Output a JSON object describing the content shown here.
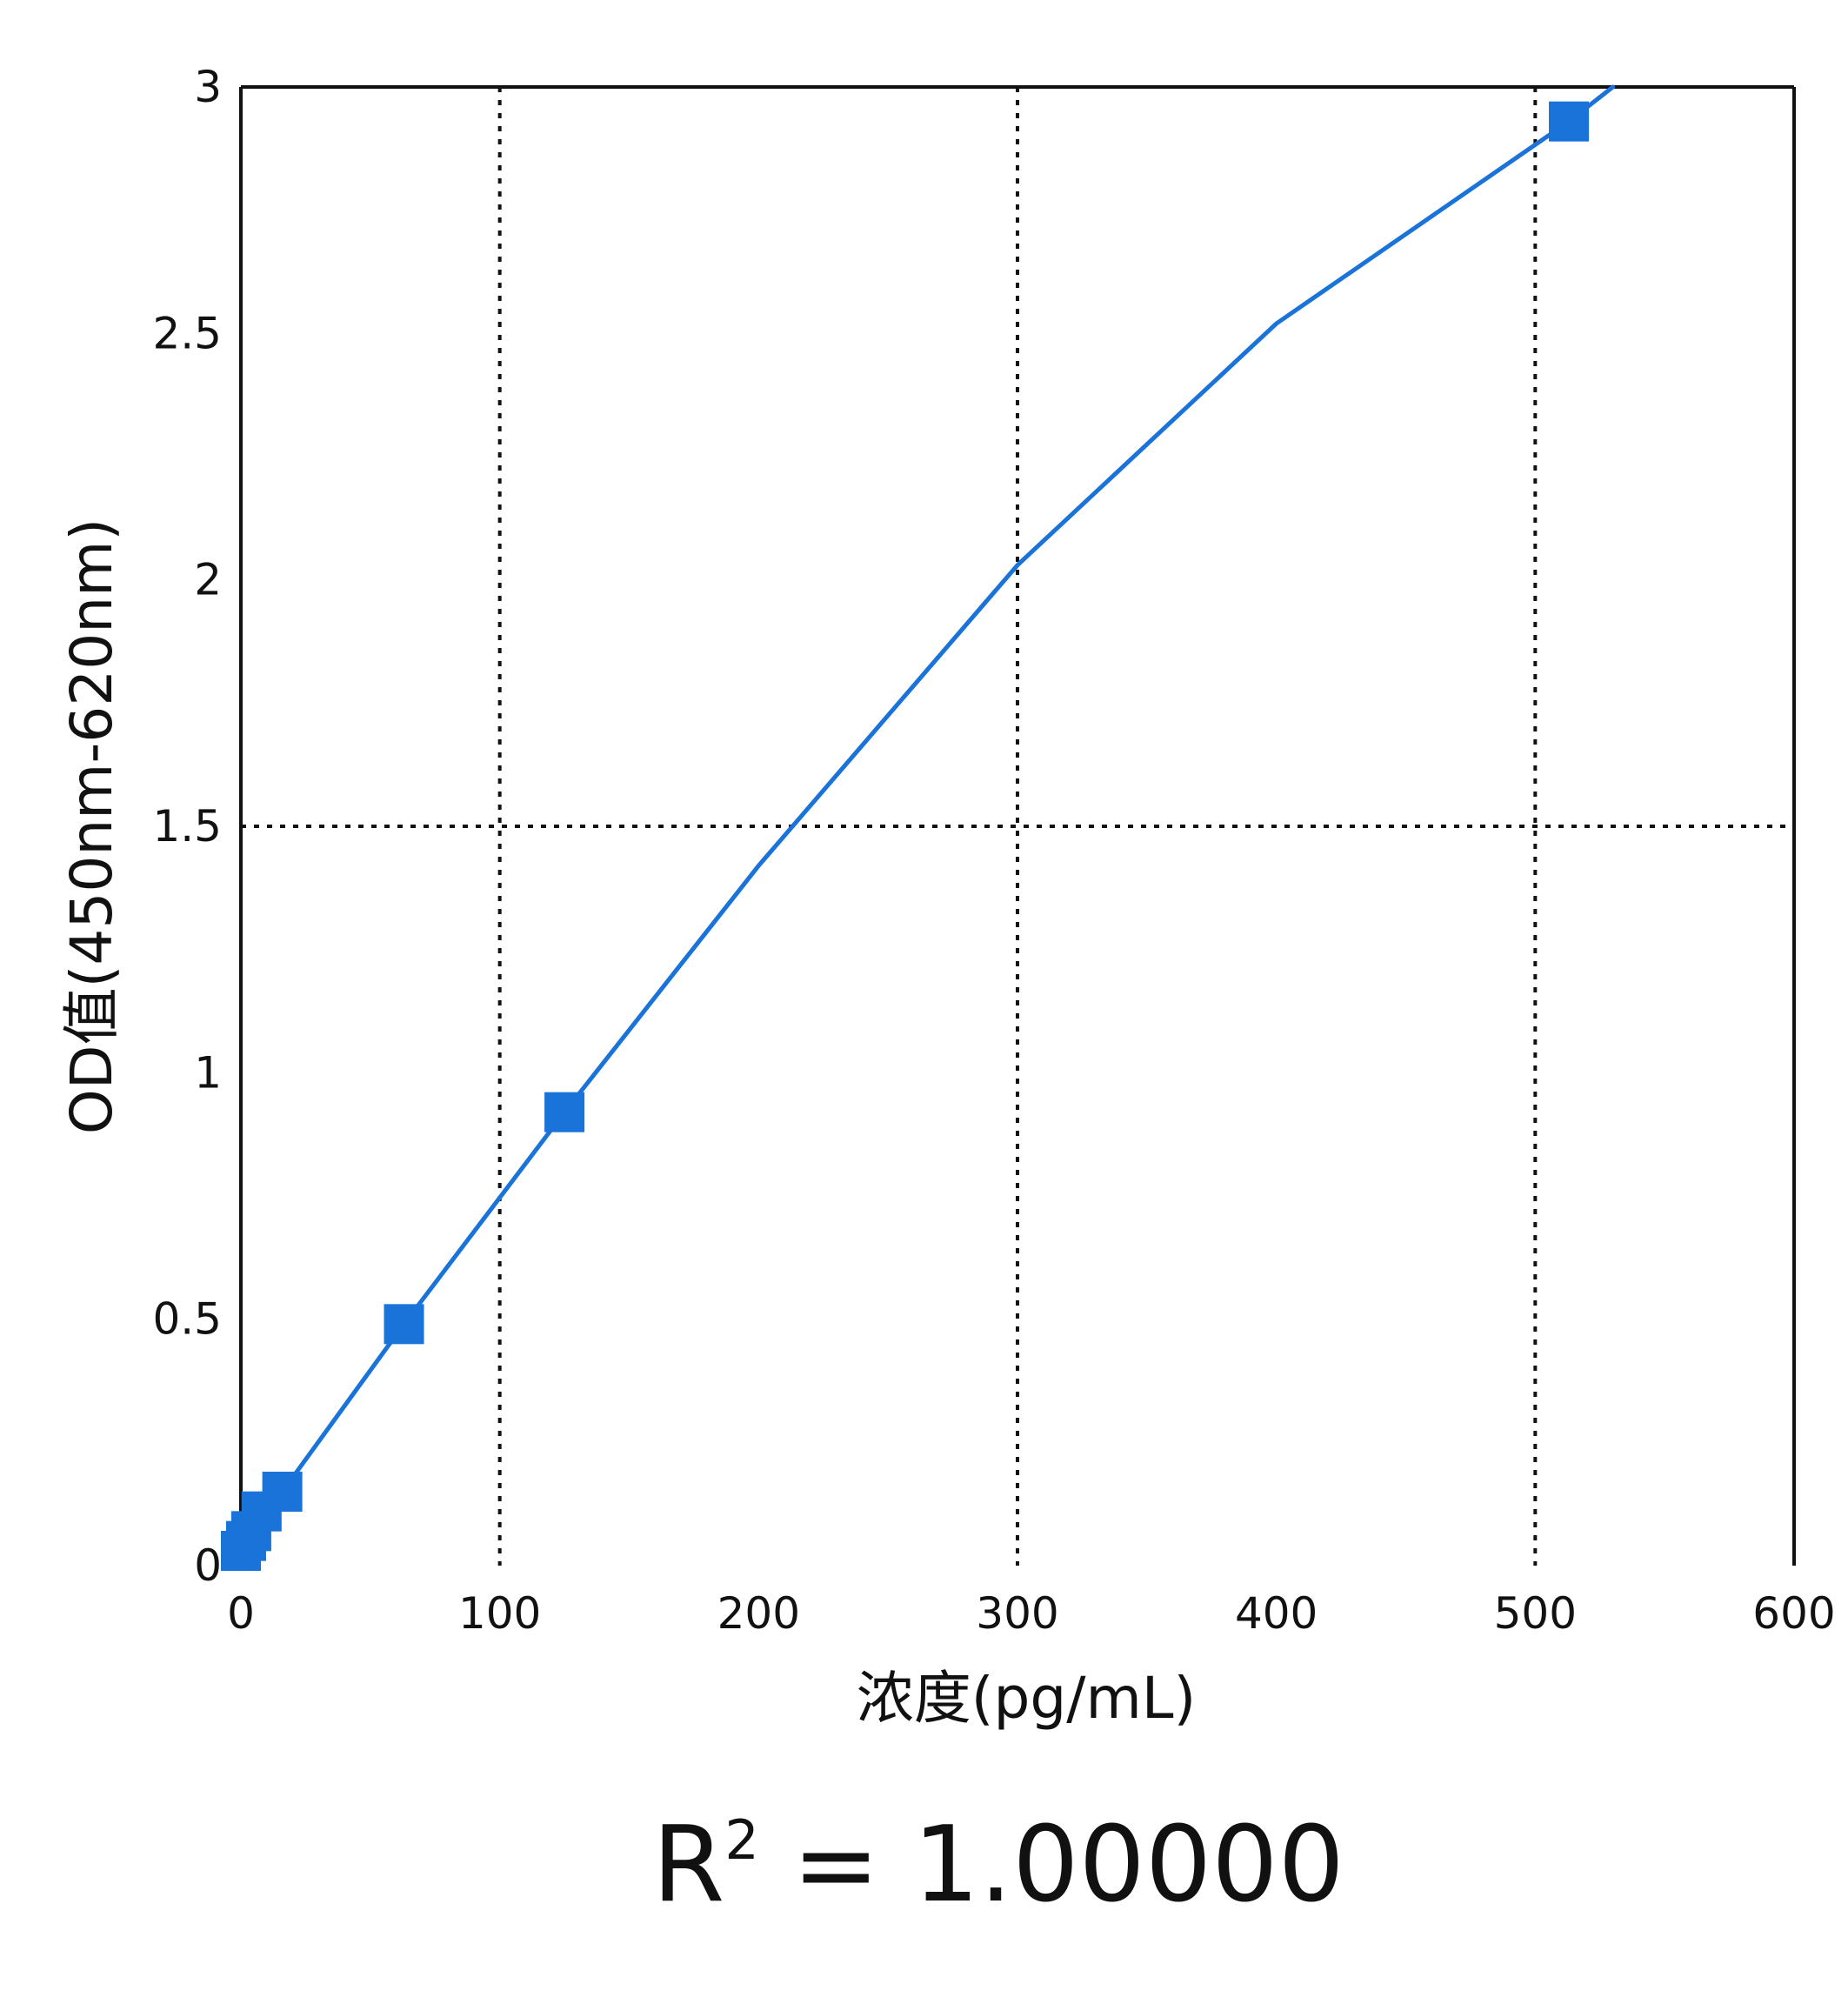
{
  "chart_data": {
    "type": "scatter",
    "title": "",
    "xlabel": "浓度(pg/mL)",
    "ylabel": "OD值(450nm-620nm)",
    "xlim": [
      0,
      600
    ],
    "ylim": [
      0,
      3
    ],
    "x_ticks": [
      0,
      100,
      200,
      300,
      400,
      500,
      600
    ],
    "y_ticks": [
      0,
      0.5,
      1,
      1.5,
      2,
      2.5,
      3
    ],
    "x_tick_labels": [
      "0",
      "100",
      "200",
      "300",
      "400",
      "500",
      "600"
    ],
    "y_tick_labels": [
      "0",
      "0.5",
      "1",
      "1.5",
      "2",
      "2.5",
      "3"
    ],
    "grid": {
      "style": "dotted",
      "x_lines": [
        100,
        300,
        500
      ],
      "y_lines": [
        1.5
      ]
    },
    "color": "#1a73d9",
    "series": [
      {
        "points": [
          {
            "x": 0,
            "y": 0.03
          },
          {
            "x": 2,
            "y": 0.05
          },
          {
            "x": 4,
            "y": 0.07
          },
          {
            "x": 8,
            "y": 0.11
          },
          {
            "x": 16,
            "y": 0.15
          },
          {
            "x": 63,
            "y": 0.49
          },
          {
            "x": 125,
            "y": 0.92
          },
          {
            "x": 513,
            "y": 2.93
          }
        ]
      }
    ],
    "fit_curve": {
      "x": [
        0,
        16,
        63,
        125,
        200,
        300,
        400,
        513,
        530
      ],
      "y": [
        0.03,
        0.15,
        0.49,
        0.92,
        1.42,
        2.03,
        2.52,
        2.93,
        3.0
      ]
    },
    "annotation": {
      "r2_prefix": "R",
      "r2_sup": "2",
      "r2_value": " = 1.00000"
    }
  }
}
